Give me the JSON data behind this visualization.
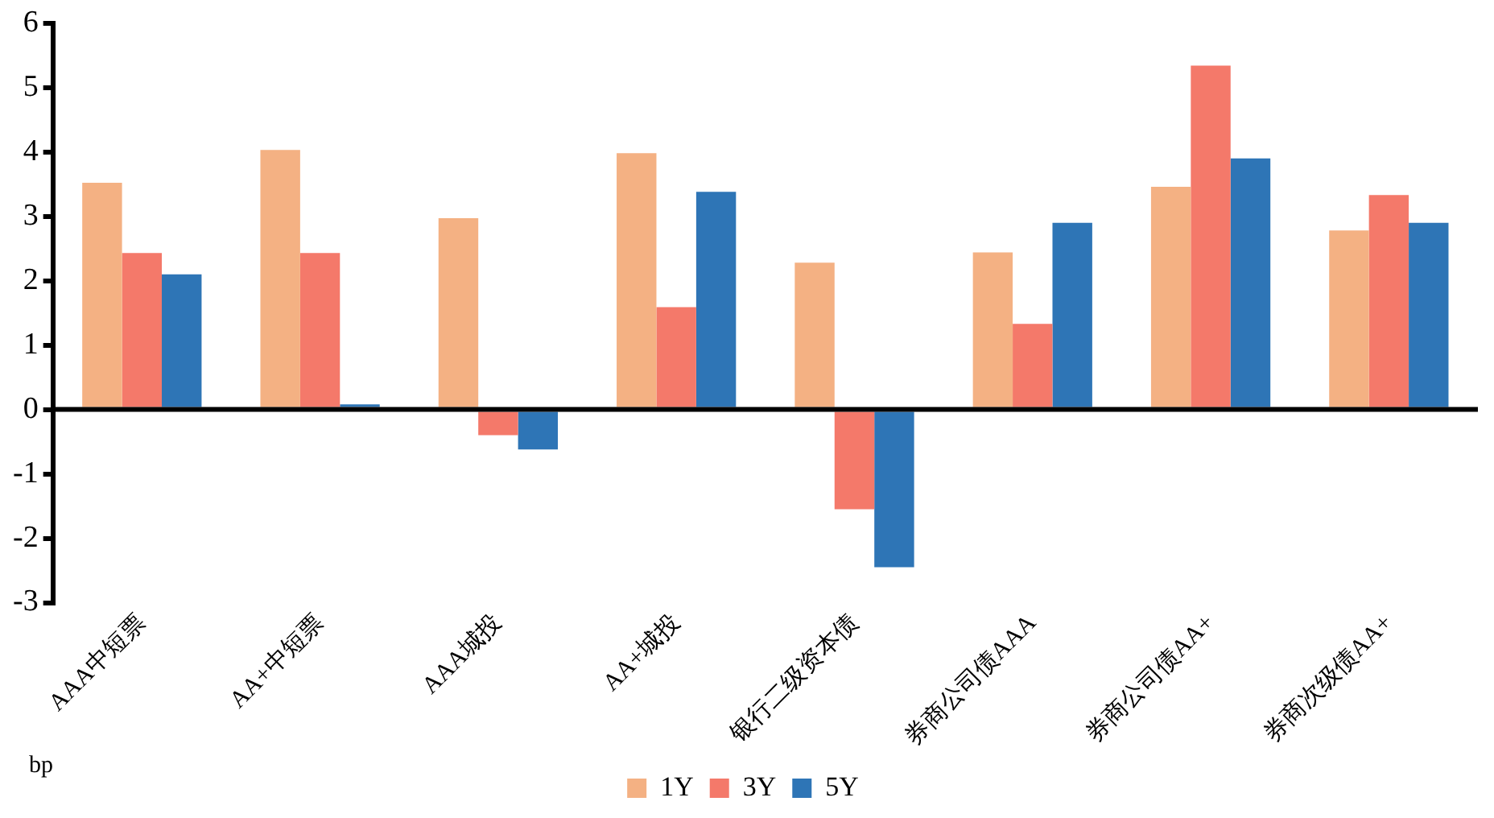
{
  "chart_data": {
    "type": "bar",
    "categories": [
      "AAA中短票",
      "AA+中短票",
      "AAA城投",
      "AA+城投",
      "银行二级资本债",
      "券商公司债AAA",
      "券商公司债AA+",
      "券商次级债AA+"
    ],
    "series": [
      {
        "name": "1Y",
        "color": "#f4b183",
        "values": [
          3.52,
          4.03,
          2.97,
          3.98,
          2.28,
          2.44,
          3.46,
          2.78
        ]
      },
      {
        "name": "3Y",
        "color": "#f4796a",
        "values": [
          2.43,
          2.43,
          -0.4,
          1.59,
          -1.55,
          1.33,
          5.34,
          3.33
        ]
      },
      {
        "name": "5Y",
        "color": "#2e75b6",
        "values": [
          2.1,
          0.08,
          -0.62,
          3.38,
          -2.45,
          2.9,
          3.9,
          2.9
        ]
      }
    ],
    "ylim": [
      -3,
      6
    ],
    "yticks": [
      -3,
      -2,
      -1,
      0,
      1,
      2,
      3,
      4,
      5,
      6
    ],
    "ref_lines": [
      {
        "axis": "y",
        "value": 0,
        "color": "#000000"
      }
    ],
    "grid": false,
    "legend": "bottom",
    "annotations": [
      "bp"
    ]
  }
}
